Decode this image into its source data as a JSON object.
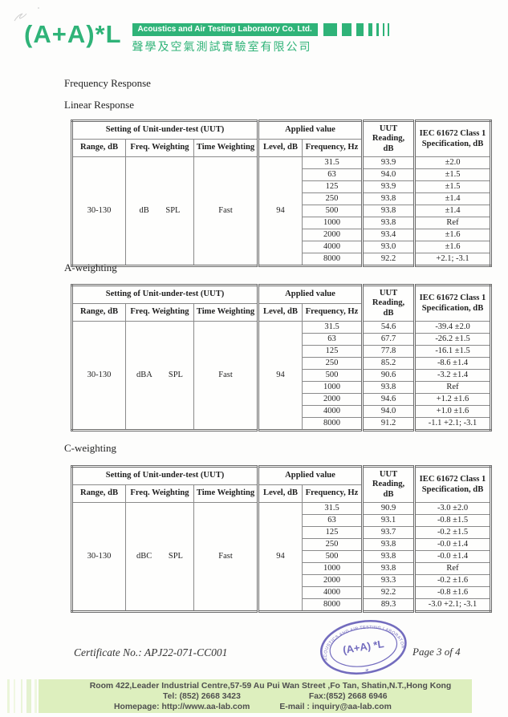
{
  "brand": {
    "logo": "(A+A)*L",
    "company_en": "Acoustics and Air Testing Laboratory Co. Ltd.",
    "company_zh": "聲學及空氣測試實驗室有限公司"
  },
  "colors": {
    "brand_green": "#2fb378",
    "footer_green": "#ddefbe",
    "stamp_purple": "#5b53b4"
  },
  "headings": {
    "main": "Frequency Response",
    "linear": "Linear Response",
    "a_weighting": "A-weighting",
    "c_weighting": "C-weighting"
  },
  "table_headers": {
    "group_uut": "Setting of Unit-under-test (UUT)",
    "group_applied": "Applied value",
    "reading_line1": "UUT Reading,",
    "reading_line2": "dB",
    "spec_line1": "IEC 61672 Class 1",
    "spec_line2": "Specification, dB",
    "range": "Range, dB",
    "freq_weighting": "Freq. Weighting",
    "time_weighting": "Time Weighting",
    "level": "Level, dB",
    "frequency": "Frequency, Hz"
  },
  "tables": [
    {
      "id": "linear-response",
      "range": "30-130",
      "freq_weighting": "dB SPL",
      "time_weighting": "Fast",
      "level": "94",
      "rows": [
        [
          "31.5",
          "93.9",
          "±2.0"
        ],
        [
          "63",
          "94.0",
          "±1.5"
        ],
        [
          "125",
          "93.9",
          "±1.5"
        ],
        [
          "250",
          "93.8",
          "±1.4"
        ],
        [
          "500",
          "93.8",
          "±1.4"
        ],
        [
          "1000",
          "93.8",
          "Ref"
        ],
        [
          "2000",
          "93.4",
          "±1.6"
        ],
        [
          "4000",
          "93.0",
          "±1.6"
        ],
        [
          "8000",
          "92.2",
          "+2.1; -3.1"
        ]
      ]
    },
    {
      "id": "a-weighting",
      "range": "30-130",
      "freq_weighting": "dBA SPL",
      "time_weighting": "Fast",
      "level": "94",
      "rows": [
        [
          "31.5",
          "54.6",
          "-39.4 ±2.0"
        ],
        [
          "63",
          "67.7",
          "-26.2 ±1.5"
        ],
        [
          "125",
          "77.8",
          "-16.1 ±1.5"
        ],
        [
          "250",
          "85.2",
          "-8.6 ±1.4"
        ],
        [
          "500",
          "90.6",
          "-3.2 ±1.4"
        ],
        [
          "1000",
          "93.8",
          "Ref"
        ],
        [
          "2000",
          "94.6",
          "+1.2 ±1.6"
        ],
        [
          "4000",
          "94.0",
          "+1.0 ±1.6"
        ],
        [
          "8000",
          "91.2",
          "-1.1 +2.1; -3.1"
        ]
      ]
    },
    {
      "id": "c-weighting",
      "range": "30-130",
      "freq_weighting": "dBC SPL",
      "time_weighting": "Fast",
      "level": "94",
      "rows": [
        [
          "31.5",
          "90.9",
          "-3.0 ±2.0"
        ],
        [
          "63",
          "93.1",
          "-0.8 ±1.5"
        ],
        [
          "125",
          "93.7",
          "-0.2 ±1.5"
        ],
        [
          "250",
          "93.8",
          "-0.0 ±1.4"
        ],
        [
          "500",
          "93.8",
          "-0.0 ±1.4"
        ],
        [
          "1000",
          "93.8",
          "Ref"
        ],
        [
          "2000",
          "93.3",
          "-0.2 ±1.6"
        ],
        [
          "4000",
          "92.2",
          "-0.8 ±1.6"
        ],
        [
          "8000",
          "89.3",
          "-3.0 +2.1; -3.1"
        ]
      ]
    }
  ],
  "stamp": {
    "ring_text": "ACOUSTICS AND AIR TESTING LABORATORY CO LTD",
    "center_text": "(A+A) *L",
    "star": "*"
  },
  "certificate_no": "Certificate No.: APJ22-071-CC001",
  "page_label": "Page 3 of 4",
  "footer": {
    "address": "Room 422,Leader Industrial Centre,57-59 Au Pui Wan Street ,Fo Tan, Shatin,N.T.,Hong Kong",
    "tel": "Tel: (852) 2668 3423",
    "fax": "Fax:(852) 2668 6946",
    "homepage": "Homepage: http://www.aa-lab.com",
    "email": "E-mail : inquiry@aa-lab.com"
  }
}
